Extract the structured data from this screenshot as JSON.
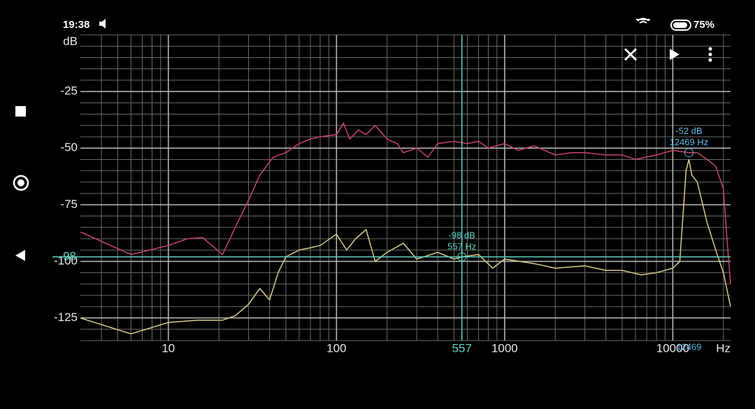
{
  "status_bar": {
    "time": "19:38",
    "battery": "75%"
  },
  "chart_data": {
    "type": "line",
    "log_x": true,
    "grid": true,
    "minor_grid": true,
    "ylabel": "dB",
    "xlabel": "Hz",
    "xlim": [
      3,
      22050
    ],
    "xticks": [
      10,
      100,
      1000,
      10000
    ],
    "ylim": [
      -135,
      0
    ],
    "yticks": [
      -25,
      -50,
      -75,
      -100,
      -125
    ],
    "series": [
      {
        "color": "#c8456a",
        "x": [
          3,
          6,
          10,
          13,
          16,
          21,
          25,
          30,
          35,
          42,
          50,
          60,
          70,
          80,
          100,
          110,
          120,
          135,
          150,
          170,
          200,
          230,
          250,
          300,
          350,
          400,
          500,
          600,
          700,
          800,
          1000,
          1200,
          1500,
          2000,
          2500,
          3000,
          4000,
          5000,
          6000,
          8000,
          10000,
          12469,
          14000,
          16000,
          18000,
          20000,
          21000,
          22050
        ],
        "values": [
          -87,
          -97,
          -93,
          -90,
          -89.5,
          -97,
          -85,
          -73,
          -62,
          -54,
          -52,
          -48,
          -46,
          -45,
          -44,
          -39,
          -46,
          -42,
          -44,
          -40,
          -46,
          -48,
          -52,
          -50,
          -54,
          -48,
          -47,
          -48,
          -47,
          -50,
          -48,
          -51,
          -49,
          -53,
          -52,
          -52,
          -53,
          -53,
          -55,
          -53,
          -51,
          -52,
          -52,
          -55,
          -58,
          -68,
          -90,
          -110
        ]
      },
      {
        "color": "#d8cc8a",
        "x": [
          3,
          6,
          10,
          15,
          21,
          25,
          30,
          35,
          40,
          45,
          50,
          60,
          70,
          80,
          100,
          115,
          130,
          150,
          170,
          200,
          250,
          300,
          400,
          500,
          557,
          700,
          850,
          1000,
          1500,
          2000,
          3000,
          4000,
          5000,
          6500,
          8000,
          10000,
          11000,
          12000,
          12469,
          13000,
          14000,
          16000,
          18000,
          20000,
          22050
        ],
        "values": [
          -125,
          -132,
          -127,
          -126,
          -126,
          -124,
          -119,
          -112,
          -117,
          -105,
          -98,
          -95,
          -94,
          -93,
          -88,
          -95,
          -90,
          -86,
          -100,
          -96,
          -92,
          -99,
          -96,
          -99,
          -98,
          -97,
          -103,
          -99,
          -101,
          -103,
          -102,
          -104,
          -104,
          -106,
          -105,
          -103,
          -100,
          -60,
          -55,
          -62,
          -65,
          -83,
          -95,
          -105,
          -120
        ]
      }
    ],
    "cursor": {
      "x": 557,
      "y": -98,
      "readout": [
        "-98 dB",
        "557 Hz"
      ],
      "color": "#5fd3c4"
    },
    "peak": {
      "x": 12469,
      "y": -52,
      "readout": [
        "-52 dB",
        "12469 Hz"
      ],
      "color": "#5fb8e0"
    }
  }
}
